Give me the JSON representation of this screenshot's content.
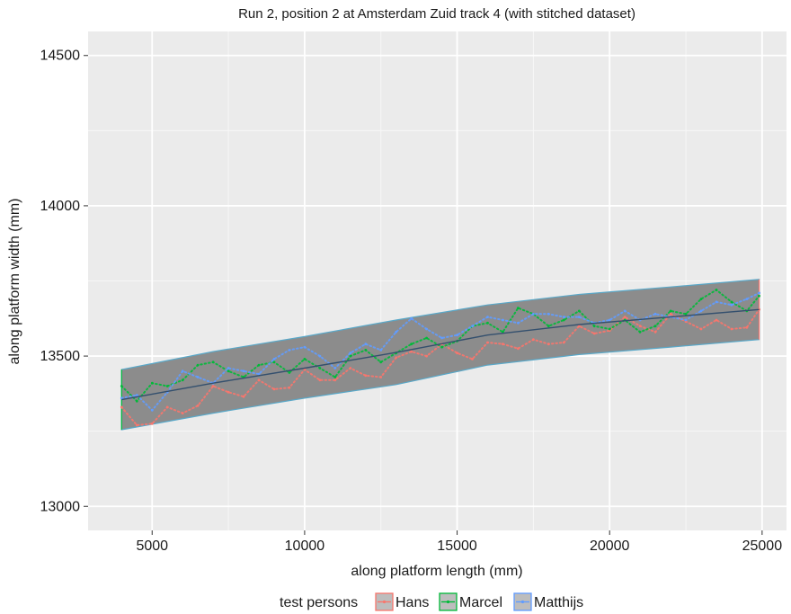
{
  "chart_data": {
    "type": "line",
    "title": "Run 2, position 2 at Amsterdam Zuid track 4 (with stitched dataset)",
    "xlabel": "along platform length (mm)",
    "ylabel": "along platform width (mm)",
    "xlim": [
      2900,
      25800
    ],
    "ylim": [
      12920,
      14580
    ],
    "xticks": [
      5000,
      10000,
      15000,
      20000,
      25000
    ],
    "yticks": [
      13000,
      13500,
      14000,
      14500
    ],
    "xtick_labels": [
      "5000",
      "10000",
      "15000",
      "20000",
      "25000"
    ],
    "ytick_labels": [
      "13000",
      "13500",
      "14000",
      "14500"
    ],
    "grid": true,
    "legend": {
      "title": "test persons",
      "placement": "bottom",
      "entries": [
        "Hans",
        "Marcel",
        "Matthijs"
      ]
    },
    "band": {
      "x": [
        4000,
        7000,
        10000,
        13000,
        16000,
        19000,
        22000,
        24900
      ],
      "lower": [
        13255,
        13310,
        13360,
        13405,
        13470,
        13505,
        13530,
        13555
      ],
      "upper": [
        13455,
        13515,
        13565,
        13620,
        13670,
        13705,
        13730,
        13755
      ],
      "color": "#8c8c8c",
      "edge_color": "#5aa8c8"
    },
    "trend": {
      "x": [
        4000,
        7000,
        10000,
        13000,
        16000,
        19000,
        22000,
        24900
      ],
      "y": [
        13355,
        13410,
        13460,
        13512,
        13570,
        13605,
        13630,
        13655
      ],
      "color": "#34506e"
    },
    "series": [
      {
        "name": "Hans",
        "color": "#f8766d",
        "x": [
          4000,
          4500,
          5000,
          5500,
          6000,
          6500,
          7000,
          7500,
          8000,
          8500,
          9000,
          9500,
          10000,
          10500,
          11000,
          11500,
          12000,
          12500,
          13000,
          13500,
          14000,
          14500,
          15000,
          15500,
          16000,
          16500,
          17000,
          17500,
          18000,
          18500,
          19000,
          19500,
          20000,
          20500,
          21000,
          21500,
          22000,
          22500,
          23000,
          23500,
          24000,
          24500,
          24900
        ],
        "y": [
          13330,
          13270,
          13275,
          13330,
          13310,
          13335,
          13400,
          13380,
          13365,
          13420,
          13390,
          13395,
          13455,
          13420,
          13420,
          13460,
          13435,
          13430,
          13495,
          13515,
          13500,
          13540,
          13510,
          13490,
          13545,
          13540,
          13525,
          13555,
          13540,
          13545,
          13600,
          13575,
          13585,
          13630,
          13600,
          13580,
          13640,
          13615,
          13590,
          13620,
          13590,
          13595,
          13655
        ]
      },
      {
        "name": "Marcel",
        "color": "#00ba38",
        "x": [
          4000,
          4500,
          5000,
          5500,
          6000,
          6500,
          7000,
          7500,
          8000,
          8500,
          9000,
          9500,
          10000,
          10500,
          11000,
          11500,
          12000,
          12500,
          13000,
          13500,
          14000,
          14500,
          15000,
          15500,
          16000,
          16500,
          17000,
          17500,
          18000,
          18500,
          19000,
          19500,
          20000,
          20500,
          21000,
          21500,
          22000,
          22500,
          23000,
          23500,
          24000,
          24500,
          24900
        ],
        "y": [
          13400,
          13350,
          13410,
          13400,
          13420,
          13470,
          13480,
          13450,
          13430,
          13470,
          13480,
          13445,
          13490,
          13460,
          13430,
          13500,
          13520,
          13480,
          13510,
          13540,
          13560,
          13530,
          13550,
          13600,
          13610,
          13580,
          13660,
          13640,
          13600,
          13620,
          13650,
          13600,
          13590,
          13620,
          13580,
          13600,
          13650,
          13640,
          13690,
          13720,
          13680,
          13650,
          13700
        ]
      },
      {
        "name": "Matthijs",
        "color": "#619cff",
        "x": [
          4000,
          4500,
          5000,
          5500,
          6000,
          6500,
          7000,
          7500,
          8000,
          8500,
          9000,
          9500,
          10000,
          10500,
          11000,
          11500,
          12000,
          12500,
          13000,
          13500,
          14000,
          14500,
          15000,
          15500,
          16000,
          16500,
          17000,
          17500,
          18000,
          18500,
          19000,
          19500,
          20000,
          20500,
          21000,
          21500,
          22000,
          22500,
          23000,
          23500,
          24000,
          24500,
          24900
        ],
        "y": [
          13360,
          13370,
          13320,
          13380,
          13450,
          13430,
          13410,
          13460,
          13450,
          13440,
          13490,
          13520,
          13530,
          13500,
          13460,
          13510,
          13540,
          13520,
          13580,
          13625,
          13590,
          13560,
          13570,
          13600,
          13630,
          13620,
          13610,
          13640,
          13640,
          13630,
          13630,
          13610,
          13620,
          13650,
          13620,
          13640,
          13630,
          13620,
          13650,
          13680,
          13670,
          13690,
          13710
        ]
      }
    ]
  }
}
